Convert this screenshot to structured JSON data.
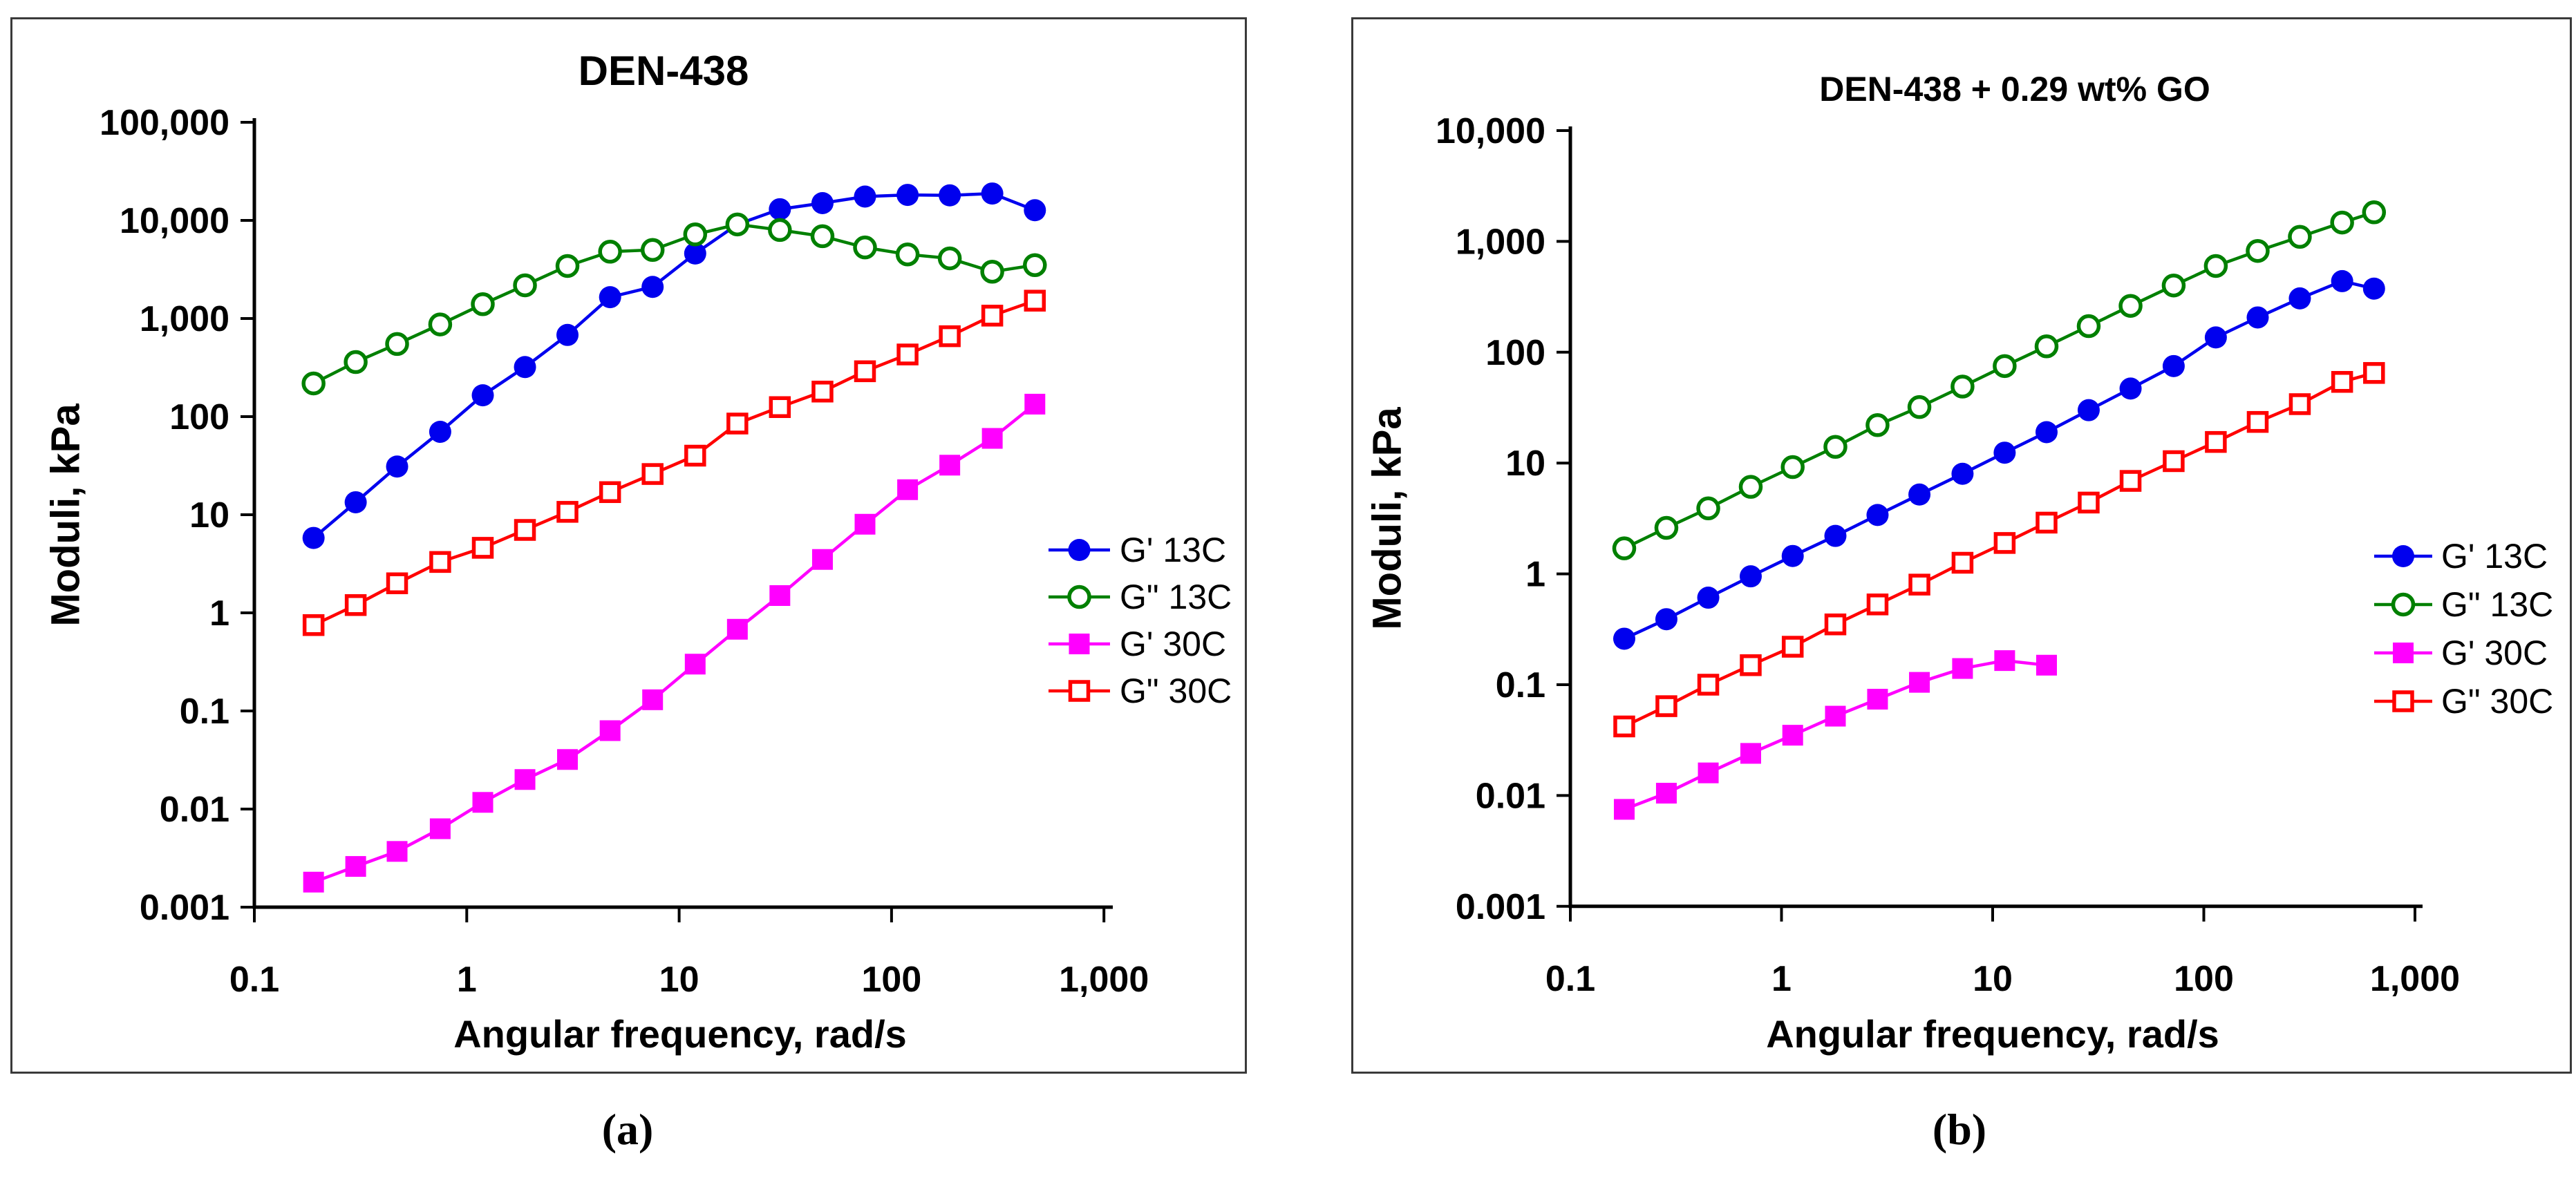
{
  "captions": {
    "a": "(a)",
    "b": "(b)"
  },
  "chart_data": [
    {
      "type": "line",
      "title": "DEN-438",
      "xlabel": "Angular frequency, rad/s",
      "ylabel": "Moduli, kPa",
      "log_x": true,
      "log_y": true,
      "grid": false,
      "xlim": [
        0.1,
        1000
      ],
      "ylim": [
        0.001,
        100000
      ],
      "x_tick_labels": [
        "0.1",
        "1",
        "10",
        "100",
        "1,000"
      ],
      "y_tick_labels": [
        "100,000",
        "10,000",
        "1,000",
        "100",
        "10",
        "1",
        "0.1",
        "0.01",
        "0.001"
      ],
      "legend_position": "inside-right",
      "series": [
        {
          "label": "G' 13C",
          "color": "#0000EE",
          "marker": "circle-filled",
          "x": [
            0.19,
            0.3,
            0.47,
            0.75,
            1.19,
            1.88,
            2.98,
            4.73,
            7.5,
            11.9,
            18.8,
            29.8,
            47.3,
            75,
            119,
            188,
            298,
            473
          ],
          "y": [
            5.8,
            13.4,
            31,
            70,
            165,
            320,
            680,
            1650,
            2100,
            4600,
            9100,
            13000,
            15000,
            17500,
            18200,
            18000,
            18800,
            12700
          ]
        },
        {
          "label": "G\" 13C",
          "color": "#008000",
          "marker": "circle-open",
          "x": [
            0.19,
            0.3,
            0.47,
            0.75,
            1.19,
            1.88,
            2.98,
            4.73,
            7.5,
            11.9,
            18.8,
            29.8,
            47.3,
            75,
            119,
            188,
            298,
            473
          ],
          "y": [
            218,
            360,
            550,
            870,
            1400,
            2180,
            3430,
            4800,
            5000,
            7200,
            9100,
            7980,
            6900,
            5300,
            4500,
            4100,
            3000,
            3500
          ]
        },
        {
          "label": "G' 30C",
          "color": "#FF00FF",
          "marker": "square-filled",
          "x": [
            0.19,
            0.3,
            0.47,
            0.75,
            1.19,
            1.88,
            2.98,
            4.73,
            7.5,
            11.9,
            18.8,
            29.8,
            47.3,
            75,
            119,
            188,
            298,
            473
          ],
          "y": [
            0.0018,
            0.0026,
            0.0037,
            0.0063,
            0.0117,
            0.02,
            0.032,
            0.063,
            0.13,
            0.3,
            0.68,
            1.5,
            3.5,
            8.0,
            18,
            32,
            60,
            134
          ]
        },
        {
          "label": "G\" 30C",
          "color": "#FF0000",
          "marker": "square-open",
          "x": [
            0.19,
            0.3,
            0.47,
            0.75,
            1.19,
            1.88,
            2.98,
            4.73,
            7.5,
            11.9,
            18.8,
            29.8,
            47.3,
            75,
            119,
            188,
            298,
            473
          ],
          "y": [
            0.75,
            1.2,
            2.0,
            3.3,
            4.6,
            7.0,
            10.7,
            17,
            26,
            40,
            85,
            125,
            180,
            290,
            430,
            660,
            1070,
            1520
          ]
        }
      ]
    },
    {
      "type": "line",
      "title": "DEN-438 + 0.29 wt% GO",
      "xlabel": "Angular frequency, rad/s",
      "ylabel": "Moduli, kPa",
      "log_x": true,
      "log_y": true,
      "grid": false,
      "xlim": [
        0.1,
        1000
      ],
      "ylim": [
        0.001,
        10000
      ],
      "x_tick_labels": [
        "0.1",
        "1",
        "10",
        "100",
        "1,000"
      ],
      "y_tick_labels": [
        "10,000",
        "1,000",
        "100",
        "10",
        "1",
        "0.1",
        "0.01",
        "0.001"
      ],
      "legend_position": "inside-right",
      "series": [
        {
          "label": "G' 13C",
          "color": "#0000EE",
          "marker": "circle-filled",
          "x": [
            0.18,
            0.285,
            0.45,
            0.715,
            1.13,
            1.8,
            2.85,
            4.5,
            7.2,
            11.4,
            18,
            28.5,
            45,
            72,
            114,
            180,
            285,
            452,
            640
          ],
          "y": [
            0.26,
            0.39,
            0.61,
            0.95,
            1.45,
            2.2,
            3.4,
            5.2,
            8.0,
            12.4,
            19,
            30,
            47,
            75,
            136,
            206,
            306,
            438,
            375
          ]
        },
        {
          "label": "G\" 13C",
          "color": "#008000",
          "marker": "circle-open",
          "x": [
            0.18,
            0.285,
            0.45,
            0.715,
            1.13,
            1.8,
            2.85,
            4.5,
            7.2,
            11.4,
            18,
            28.5,
            45,
            72,
            114,
            180,
            285,
            452,
            640
          ],
          "y": [
            1.7,
            2.6,
            3.9,
            6.1,
            9.2,
            14,
            22,
            32,
            49,
            75,
            113,
            172,
            262,
            400,
            600,
            820,
            1100,
            1480,
            1830
          ]
        },
        {
          "label": "G' 30C",
          "color": "#FF00FF",
          "marker": "square-filled",
          "x": [
            0.18,
            0.285,
            0.45,
            0.715,
            1.13,
            1.8,
            2.85,
            4.5,
            7.2,
            11.4,
            18
          ],
          "y": [
            0.0075,
            0.0105,
            0.016,
            0.024,
            0.035,
            0.052,
            0.074,
            0.105,
            0.14,
            0.165,
            0.15
          ]
        },
        {
          "label": "G\" 30C",
          "color": "#FF0000",
          "marker": "square-open",
          "x": [
            0.18,
            0.285,
            0.45,
            0.715,
            1.13,
            1.8,
            2.85,
            4.5,
            7.2,
            11.4,
            18,
            28.5,
            45,
            72,
            114,
            180,
            285,
            452,
            640
          ],
          "y": [
            0.042,
            0.064,
            0.1,
            0.15,
            0.22,
            0.35,
            0.53,
            0.8,
            1.26,
            1.9,
            2.9,
            4.4,
            6.9,
            10.4,
            15.5,
            23.5,
            34,
            54,
            65
          ]
        }
      ]
    }
  ]
}
